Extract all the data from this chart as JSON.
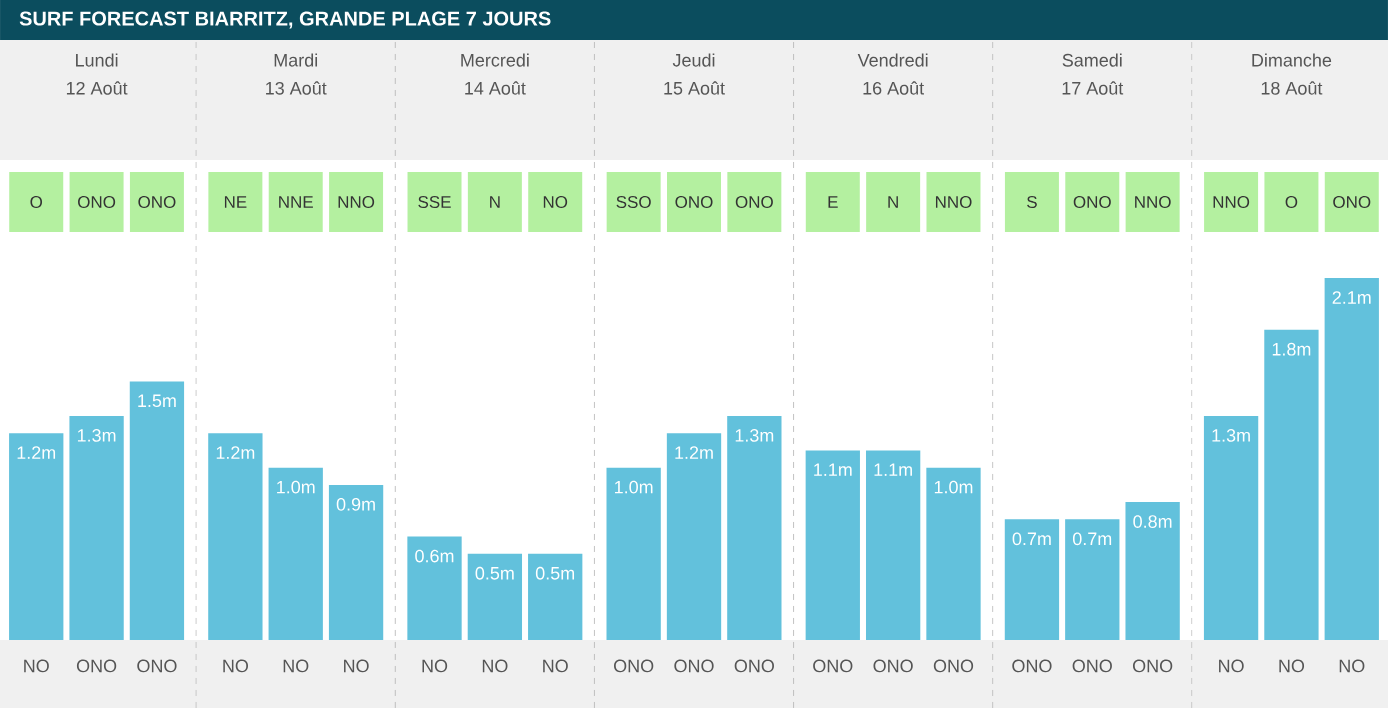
{
  "chart_data": {
    "type": "bar",
    "title": "SURF FORECAST BIARRITZ, GRANDE PLAGE 7 JOURS",
    "categories": [
      "NO",
      "ONO",
      "ONO",
      "NO",
      "NO",
      "NO",
      "NO",
      "NO",
      "NO",
      "ONO",
      "ONO",
      "ONO",
      "ONO",
      "ONO",
      "ONO",
      "ONO",
      "ONO",
      "ONO",
      "NO",
      "NO",
      "NO"
    ],
    "values": [
      1.2,
      1.3,
      1.5,
      1.2,
      1.0,
      0.9,
      0.6,
      0.5,
      0.5,
      1.0,
      1.2,
      1.3,
      1.1,
      1.1,
      1.0,
      0.7,
      0.7,
      0.8,
      1.3,
      1.8,
      2.1
    ],
    "value_labels": [
      "1.2m",
      "1.3m",
      "1.5m",
      "1.2m",
      "1.0m",
      "0.9m",
      "0.6m",
      "0.5m",
      "0.5m",
      "1.0m",
      "1.2m",
      "1.3m",
      "1.1m",
      "1.1m",
      "1.0m",
      "0.7m",
      "0.7m",
      "0.8m",
      "1.3m",
      "1.8m",
      "2.1m"
    ],
    "color": "#62c1dc",
    "annotations": [
      "Lundi",
      "Mardi",
      "Mercredi",
      "Jeudi",
      "Vendredi",
      "Samedi",
      "Dimanche",
      "12 Août",
      "13 Août",
      "14 Août",
      "15 Août",
      "16 Août",
      "17 Août",
      "18 Août",
      "O",
      "ONO",
      "ONO",
      "NE",
      "NNE",
      "NNO",
      "SSE",
      "N",
      "NO",
      "SSO",
      "ONO",
      "ONO",
      "E",
      "N",
      "NNO",
      "S",
      "ONO",
      "NNO",
      "NNO",
      "O",
      "ONO"
    ]
  }
}
